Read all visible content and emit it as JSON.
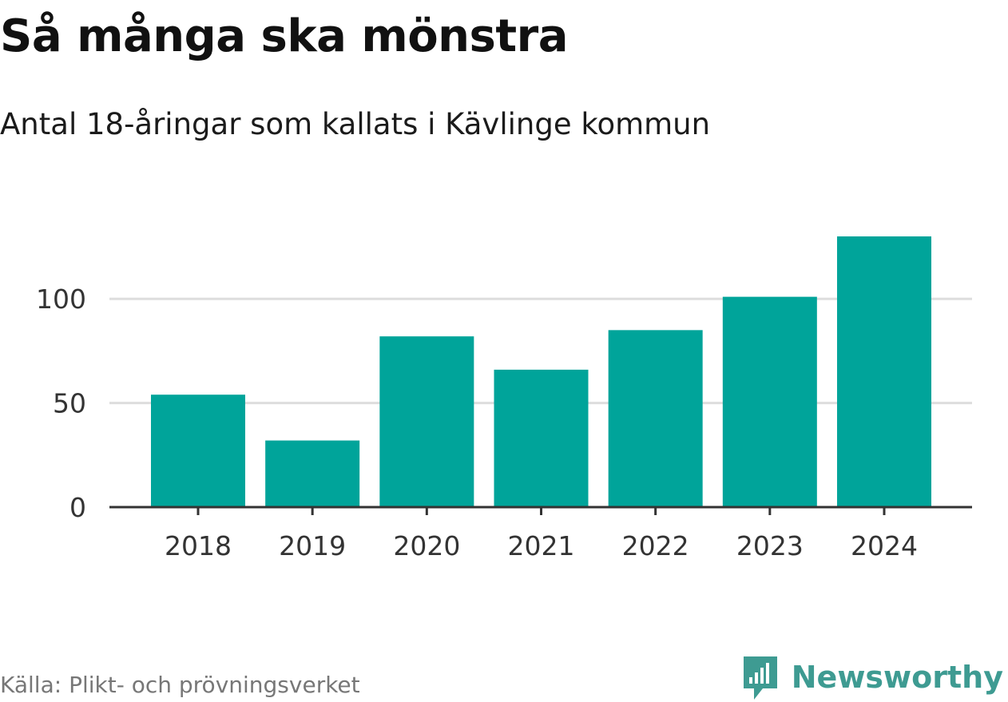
{
  "header": {
    "title": "Så många ska mönstra",
    "subtitle": "Antal 18-åringar som kallats i Kävlinge kommun"
  },
  "footer": {
    "source": "Källa: Plikt- och prövningsverket",
    "brand": "Newsworthy",
    "brand_icon": "bar-chart-speech-icon"
  },
  "colors": {
    "bar": "#00a49a",
    "grid": "#dddddd",
    "axis": "#333333",
    "brand": "#3e9b92",
    "source_text": "#777777"
  },
  "chart_data": {
    "type": "bar",
    "title": "Så många ska mönstra",
    "subtitle": "Antal 18-åringar som kallats i Kävlinge kommun",
    "xlabel": "",
    "ylabel": "",
    "categories": [
      "2018",
      "2019",
      "2020",
      "2021",
      "2022",
      "2023",
      "2024"
    ],
    "values": [
      54,
      32,
      82,
      66,
      85,
      101,
      130
    ],
    "ylim": [
      0,
      130
    ],
    "yticks": [
      0,
      50,
      100
    ],
    "grid": "horizontal",
    "legend": "none"
  }
}
